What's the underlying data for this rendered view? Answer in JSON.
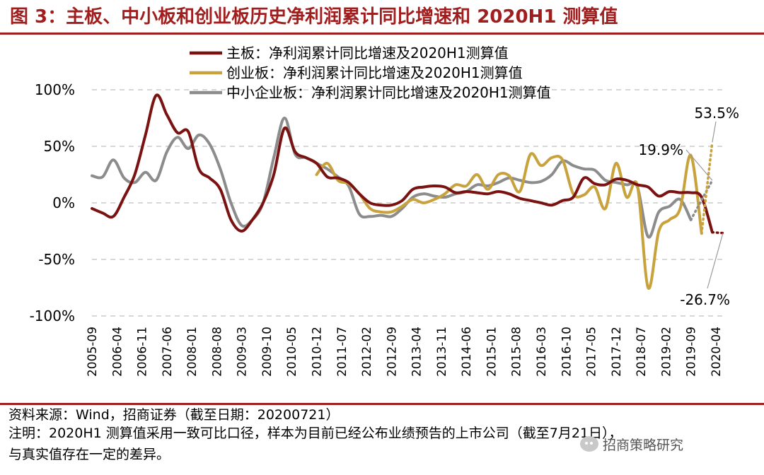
{
  "title": "图 3：主板、中小板和创业板历史净利润累计同比增速和 2020H1 测算值",
  "colors": {
    "title": "#a01e1e",
    "main_board": "#7b1212",
    "chinext": "#c8a23c",
    "sme_board": "#8c8c8c",
    "grid": "#bfbfbf"
  },
  "chart_data": {
    "type": "line",
    "title": "",
    "xlabel": "",
    "ylabel": "",
    "ylim": [
      -100,
      100
    ],
    "ytick_values": [
      100,
      50,
      0,
      -50,
      -100
    ],
    "ytick_labels": [
      "100%",
      "50%",
      "0%",
      "-50%",
      "-100%"
    ],
    "x_start": "2005-09",
    "x_end": "2020-06",
    "xtick_labels": [
      "2005-09",
      "2006-04",
      "2006-11",
      "2007-06",
      "2008-01",
      "2008-08",
      "2009-03",
      "2009-10",
      "2010-05",
      "2010-12",
      "2011-07",
      "2012-02",
      "2012-09",
      "2013-04",
      "2013-11",
      "2014-06",
      "2015-01",
      "2015-08",
      "2016-03",
      "2016-10",
      "2017-05",
      "2017-12",
      "2018-07",
      "2019-02",
      "2019-09",
      "2020-04"
    ],
    "legend_position": "top",
    "series": [
      {
        "name": "主板：净利润累计同比增速及2020H1测算值",
        "color": "#7b1212",
        "style": "solid",
        "points": [
          [
            "2005-09",
            -5
          ],
          [
            "2005-12",
            -9
          ],
          [
            "2006-03",
            -12
          ],
          [
            "2006-06",
            5
          ],
          [
            "2006-09",
            25
          ],
          [
            "2006-12",
            60
          ],
          [
            "2007-03",
            95
          ],
          [
            "2007-06",
            78
          ],
          [
            "2007-09",
            62
          ],
          [
            "2007-12",
            63
          ],
          [
            "2008-03",
            30
          ],
          [
            "2008-06",
            22
          ],
          [
            "2008-09",
            12
          ],
          [
            "2008-12",
            -15
          ],
          [
            "2009-03",
            -25
          ],
          [
            "2009-06",
            -15
          ],
          [
            "2009-09",
            0
          ],
          [
            "2009-12",
            25
          ],
          [
            "2010-03",
            66
          ],
          [
            "2010-06",
            45
          ],
          [
            "2010-09",
            40
          ],
          [
            "2010-12",
            35
          ],
          [
            "2011-03",
            23
          ],
          [
            "2011-06",
            22
          ],
          [
            "2011-09",
            18
          ],
          [
            "2011-12",
            8
          ],
          [
            "2012-03",
            0
          ],
          [
            "2012-06",
            -2
          ],
          [
            "2012-09",
            -2
          ],
          [
            "2012-12",
            2
          ],
          [
            "2013-03",
            12
          ],
          [
            "2013-06",
            14
          ],
          [
            "2013-09",
            15
          ],
          [
            "2013-12",
            14
          ],
          [
            "2014-03",
            9
          ],
          [
            "2014-06",
            10
          ],
          [
            "2014-09",
            9
          ],
          [
            "2014-12",
            8
          ],
          [
            "2015-03",
            10
          ],
          [
            "2015-06",
            8
          ],
          [
            "2015-09",
            4
          ],
          [
            "2015-12",
            2
          ],
          [
            "2016-03",
            0
          ],
          [
            "2016-06",
            -2
          ],
          [
            "2016-09",
            2
          ],
          [
            "2016-12",
            5
          ],
          [
            "2017-03",
            22
          ],
          [
            "2017-06",
            17
          ],
          [
            "2017-09",
            16
          ],
          [
            "2017-12",
            21
          ],
          [
            "2018-03",
            20
          ],
          [
            "2018-06",
            16
          ],
          [
            "2018-09",
            14
          ],
          [
            "2018-12",
            6
          ],
          [
            "2019-03",
            10
          ],
          [
            "2019-06",
            9
          ],
          [
            "2019-09",
            9
          ],
          [
            "2019-12",
            5
          ],
          [
            "2020-03",
            -26
          ]
        ],
        "projection": [
          [
            "2020-03",
            -26
          ],
          [
            "2020-06",
            -26.7
          ]
        ]
      },
      {
        "name": "创业板：净利润累计同比增速及2020H1测算值",
        "color": "#c8a23c",
        "style": "solid",
        "points": [
          [
            "2010-12",
            25
          ],
          [
            "2011-03",
            35
          ],
          [
            "2011-06",
            20
          ],
          [
            "2011-09",
            17
          ],
          [
            "2011-12",
            8
          ],
          [
            "2012-03",
            -5
          ],
          [
            "2012-06",
            -8
          ],
          [
            "2012-09",
            -8
          ],
          [
            "2012-12",
            -3
          ],
          [
            "2013-03",
            3
          ],
          [
            "2013-06",
            0
          ],
          [
            "2013-09",
            3
          ],
          [
            "2013-12",
            8
          ],
          [
            "2014-03",
            16
          ],
          [
            "2014-06",
            15
          ],
          [
            "2014-09",
            25
          ],
          [
            "2014-12",
            12
          ],
          [
            "2015-03",
            25
          ],
          [
            "2015-06",
            24
          ],
          [
            "2015-09",
            10
          ],
          [
            "2015-12",
            43
          ],
          [
            "2016-03",
            33
          ],
          [
            "2016-06",
            40
          ],
          [
            "2016-09",
            38
          ],
          [
            "2016-12",
            8
          ],
          [
            "2017-03",
            7
          ],
          [
            "2017-06",
            14
          ],
          [
            "2017-09",
            -5
          ],
          [
            "2017-12",
            35
          ],
          [
            "2018-03",
            5
          ],
          [
            "2018-06",
            15
          ],
          [
            "2018-09",
            -75
          ],
          [
            "2018-12",
            -25
          ],
          [
            "2019-03",
            -15
          ],
          [
            "2019-06",
            -5
          ],
          [
            "2019-09",
            42
          ],
          [
            "2019-12",
            -27
          ]
        ],
        "projection": [
          [
            "2019-12",
            -27
          ],
          [
            "2020-03",
            53.5
          ]
        ]
      },
      {
        "name": "中小企业板：净利润累计同比增速及2020H1测算值",
        "color": "#8c8c8c",
        "style": "solid",
        "points": [
          [
            "2005-09",
            24
          ],
          [
            "2005-12",
            23
          ],
          [
            "2006-03",
            38
          ],
          [
            "2006-06",
            22
          ],
          [
            "2006-09",
            18
          ],
          [
            "2006-12",
            27
          ],
          [
            "2007-03",
            20
          ],
          [
            "2007-06",
            45
          ],
          [
            "2007-09",
            58
          ],
          [
            "2007-12",
            48
          ],
          [
            "2008-03",
            60
          ],
          [
            "2008-06",
            52
          ],
          [
            "2008-09",
            30
          ],
          [
            "2008-12",
            0
          ],
          [
            "2009-03",
            -20
          ],
          [
            "2009-06",
            -15
          ],
          [
            "2009-09",
            0
          ],
          [
            "2009-12",
            40
          ],
          [
            "2010-03",
            75
          ],
          [
            "2010-06",
            43
          ],
          [
            "2010-09",
            40
          ],
          [
            "2010-12",
            35
          ],
          [
            "2011-03",
            30
          ],
          [
            "2011-06",
            23
          ],
          [
            "2011-09",
            15
          ],
          [
            "2011-12",
            -10
          ],
          [
            "2012-03",
            -12
          ],
          [
            "2012-06",
            -11
          ],
          [
            "2012-09",
            -12
          ],
          [
            "2012-12",
            -5
          ],
          [
            "2013-03",
            5
          ],
          [
            "2013-06",
            8
          ],
          [
            "2013-09",
            6
          ],
          [
            "2013-12",
            5
          ],
          [
            "2014-03",
            8
          ],
          [
            "2014-06",
            10
          ],
          [
            "2014-09",
            16
          ],
          [
            "2014-12",
            15
          ],
          [
            "2015-03",
            18
          ],
          [
            "2015-06",
            22
          ],
          [
            "2015-09",
            20
          ],
          [
            "2015-12",
            18
          ],
          [
            "2016-03",
            19
          ],
          [
            "2016-06",
            25
          ],
          [
            "2016-09",
            37
          ],
          [
            "2016-12",
            33
          ],
          [
            "2017-03",
            30
          ],
          [
            "2017-06",
            29
          ],
          [
            "2017-09",
            20
          ],
          [
            "2017-12",
            18
          ],
          [
            "2018-03",
            16
          ],
          [
            "2018-06",
            14
          ],
          [
            "2018-09",
            -30
          ],
          [
            "2018-12",
            -8
          ],
          [
            "2019-03",
            -3
          ],
          [
            "2019-06",
            3
          ],
          [
            "2019-09",
            -15
          ]
        ],
        "projection": [
          [
            "2019-09",
            -15
          ],
          [
            "2020-03",
            19.9
          ]
        ]
      }
    ],
    "annotations": [
      {
        "text": "53.5%",
        "series": 1
      },
      {
        "text": "19.9%",
        "series": 2
      },
      {
        "text": "-26.7%",
        "series": 0
      }
    ]
  },
  "footer": {
    "source": "资料来源：Wind，招商证券（截至日期：20200721）",
    "note_line1": "注明：2020H1 测算值采用一致可比口径，样本为目前已经公布业绩预告的上市公司（截至7月21日），",
    "note_line2": "与真实值存在一定的差异。",
    "watermark": "招商策略研究"
  }
}
